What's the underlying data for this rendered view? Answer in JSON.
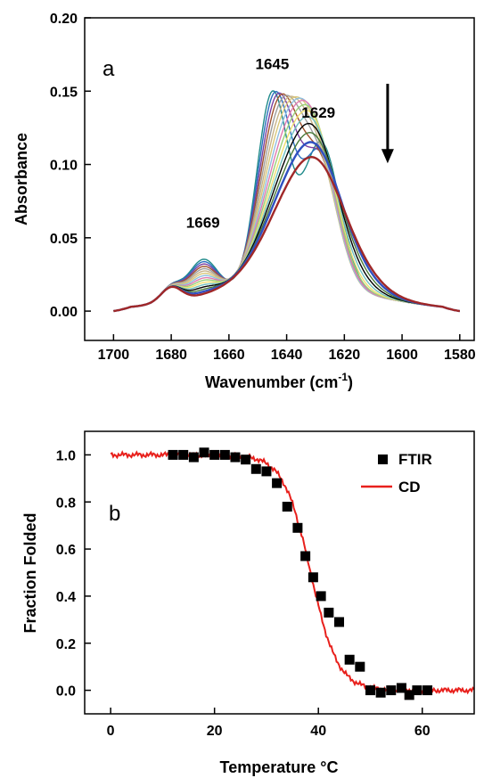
{
  "chart_data": [
    {
      "type": "line",
      "panel_label": "a",
      "xlabel": "Wavenumber (cm",
      "xlabel_sup": "-1",
      "xlabel_close": ")",
      "ylabel": "Absorbance",
      "xlim": [
        1710,
        1575
      ],
      "ylim": [
        -0.02,
        0.2
      ],
      "xticks": [
        "1700",
        "1680",
        "1660",
        "1640",
        "1620",
        "1600",
        "1580"
      ],
      "xtick_values": [
        1700,
        1680,
        1660,
        1640,
        1620,
        1600,
        1580
      ],
      "yticks": [
        "0.00",
        "0.05",
        "0.10",
        "0.15",
        "0.20"
      ],
      "ytick_values": [
        0.0,
        0.05,
        0.1,
        0.15,
        0.2
      ],
      "annotations": [
        {
          "text": "1645",
          "x": 1645,
          "y": 0.165
        },
        {
          "text": "1629",
          "x": 1629,
          "y": 0.132
        },
        {
          "text": "1669",
          "x": 1669,
          "y": 0.057
        }
      ],
      "arrow": {
        "x": 1605,
        "y_from": 0.155,
        "y_to": 0.102,
        "meaning": "decreasing with temperature"
      },
      "series": [
        {
          "color": "#1f8a8a",
          "peaks": [
            0.158,
            0.12
          ]
        },
        {
          "color": "#2a6fbf",
          "peaks": [
            0.156,
            0.121
          ]
        },
        {
          "color": "#7b3fa0",
          "peaks": [
            0.153,
            0.122
          ]
        },
        {
          "color": "#a0522d",
          "peaks": [
            0.15,
            0.122
          ]
        },
        {
          "color": "#9e9e9e",
          "peaks": [
            0.146,
            0.123
          ]
        },
        {
          "color": "#c8b48a",
          "peaks": [
            0.142,
            0.123
          ]
        },
        {
          "color": "#d9c87a",
          "peaks": [
            0.138,
            0.124
          ]
        },
        {
          "color": "#8fbfe0",
          "peaks": [
            0.134,
            0.124
          ]
        },
        {
          "color": "#e07ab0",
          "peaks": [
            0.13,
            0.125
          ]
        },
        {
          "color": "#9ad07a",
          "peaks": [
            0.126,
            0.124
          ]
        },
        {
          "color": "#f0e070",
          "peaks": [
            0.122,
            0.123
          ]
        },
        {
          "color": "#70c0c0",
          "peaks": [
            0.119,
            0.122
          ]
        },
        {
          "color": "#000000",
          "peaks": [
            0.116,
            0.12
          ]
        },
        {
          "color": "#4a7a3a",
          "peaks": [
            0.112,
            0.118
          ]
        },
        {
          "color": "#3050c0",
          "peaks": [
            0.108,
            0.116
          ]
        },
        {
          "color": "#a02828",
          "peaks": [
            0.1,
            0.112
          ]
        }
      ]
    },
    {
      "type": "scatter",
      "panel_label": "b",
      "xlabel": "Temperature °C",
      "ylabel": "Fraction Folded",
      "xlim": [
        -5,
        70
      ],
      "ylim": [
        -0.1,
        1.1
      ],
      "xticks": [
        "0",
        "20",
        "40",
        "60"
      ],
      "xtick_values": [
        0,
        20,
        40,
        60
      ],
      "yticks": [
        "0.0",
        "0.2",
        "0.4",
        "0.6",
        "0.8",
        "1.0"
      ],
      "ytick_values": [
        0.0,
        0.2,
        0.4,
        0.6,
        0.8,
        1.0
      ],
      "legend": [
        {
          "label": "FTIR",
          "marker": "square",
          "color": "#000000"
        },
        {
          "label": "CD",
          "marker": "line",
          "color": "#e8201c"
        }
      ],
      "legend_position": "top-right",
      "ftir": {
        "x": [
          12,
          14,
          16,
          18,
          20,
          22,
          24,
          26,
          28,
          30,
          32,
          34,
          36,
          37.5,
          39,
          40.5,
          42,
          44,
          46,
          48,
          50,
          52,
          54,
          56,
          57.5,
          59,
          61
        ],
        "y": [
          1.0,
          1.0,
          0.99,
          1.01,
          1.0,
          1.0,
          0.99,
          0.98,
          0.94,
          0.93,
          0.88,
          0.78,
          0.69,
          0.57,
          0.48,
          0.4,
          0.33,
          0.29,
          0.13,
          0.1,
          0.0,
          -0.01,
          0.0,
          0.01,
          -0.02,
          0.0,
          0.0
        ]
      },
      "cd": {
        "midpoint": 38.5,
        "slope": 2.6,
        "x_range": [
          0,
          70
        ]
      }
    }
  ]
}
